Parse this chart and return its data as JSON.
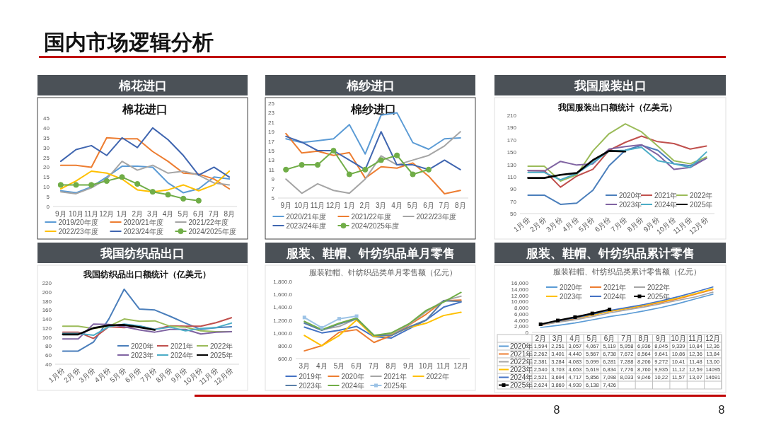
{
  "chart_data": [
    {
      "type": "other",
      "title": "国内市场逻辑分析",
      "annotations": [
        "8",
        "8"
      ]
    },
    {
      "type": "line",
      "title": "棉花进口",
      "subtitle": "棉花进口",
      "categories": [
        "9月",
        "10月",
        "11月",
        "12月",
        "1月",
        "2月",
        "3月",
        "4月",
        "5月",
        "6月",
        "7月",
        "8月"
      ],
      "ylim": [
        0,
        45
      ],
      "yticks": [
        0,
        5,
        10,
        15,
        20,
        25,
        30,
        35,
        40,
        45
      ],
      "legend": "bottom",
      "series": [
        {
          "name": "2019/20年度",
          "color": "#5b9bd5",
          "values": [
            8,
            7,
            10,
            15,
            20.5,
            20.5,
            20,
            12,
            7,
            9,
            15,
            14
          ]
        },
        {
          "name": "2020/21年度",
          "color": "#ed7d31",
          "values": [
            21,
            21,
            20,
            35,
            34.5,
            34.5,
            28,
            23,
            17,
            16.5,
            14,
            9
          ]
        },
        {
          "name": "2021/22年度",
          "color": "#a5a5a5",
          "values": [
            7.5,
            6.5,
            9.5,
            14,
            23,
            18.5,
            21,
            17,
            18,
            16,
            12,
            11
          ]
        },
        {
          "name": "2022/23年度",
          "color": "#ffc000",
          "values": [
            9,
            13,
            18,
            17,
            14,
            8.5,
            7.5,
            8.5,
            11,
            8,
            11,
            18
          ]
        },
        {
          "name": "2023/24年度",
          "color": "#4066b0",
          "values": [
            23,
            29,
            31,
            26,
            35,
            30,
            40,
            34,
            26,
            16,
            20,
            15
          ]
        },
        {
          "name": "2024/2025年度",
          "color": "#70ad47",
          "marker": "circle",
          "values": [
            11,
            11,
            11,
            13,
            15,
            11.5,
            7.5,
            6,
            4,
            3,
            null,
            null
          ]
        }
      ]
    },
    {
      "type": "line",
      "title": "棉纱进口",
      "subtitle": "棉纱进口",
      "categories": [
        "9月",
        "10月",
        "11月",
        "12月",
        "1月",
        "2月",
        "3月",
        "4月",
        "5月",
        "6月",
        "7月",
        "8月"
      ],
      "ylim": [
        5,
        25
      ],
      "yticks": [
        5,
        7,
        9,
        11,
        13,
        15,
        17,
        19,
        21,
        23,
        25
      ],
      "legend": "bottom",
      "series": [
        {
          "name": "2020/21年度",
          "color": "#5b9bd5",
          "values": [
            17.5,
            16.7,
            17.1,
            17.5,
            20.5,
            14.3,
            22.5,
            23,
            16.7,
            15.3,
            17.5,
            17.7
          ]
        },
        {
          "name": "2021/22年度",
          "color": "#ed7d31",
          "values": [
            18.6,
            14.5,
            14.9,
            14,
            14.6,
            9.2,
            11.6,
            11.3,
            12.4,
            9.6,
            5.9,
            6.6
          ]
        },
        {
          "name": "2022/23年度",
          "color": "#a5a5a5",
          "values": [
            9,
            6,
            8,
            6.6,
            6,
            9,
            13.9,
            12,
            13,
            14,
            16,
            19
          ]
        },
        {
          "name": "2023/24年度",
          "color": "#4066b0",
          "values": [
            18,
            16.8,
            15,
            15,
            13,
            11,
            19,
            12,
            12,
            11,
            13,
            11
          ]
        },
        {
          "name": "2024/2025年度",
          "color": "#70ad47",
          "marker": "circle",
          "values": [
            11,
            12,
            12,
            15,
            10,
            11,
            13,
            14,
            10,
            11,
            null,
            null
          ]
        }
      ]
    },
    {
      "type": "line",
      "title": "我国服装出口",
      "subtitle": "我国服装出口额统计（亿美元）",
      "categories": [
        "1月份",
        "2月份",
        "3月份",
        "4月份",
        "5月份",
        "6月份",
        "7月份",
        "8月份",
        "9月份",
        "10月份",
        "11月份",
        "12月份"
      ],
      "ylim": [
        50,
        210
      ],
      "yticks": [
        50,
        70,
        90,
        110,
        130,
        150,
        170,
        190,
        210
      ],
      "legend": "bottom right",
      "series": [
        {
          "name": "2020年",
          "color": "#4a7ebb",
          "values": [
            80,
            80,
            65,
            67,
            88,
            128,
            153,
            161,
            153,
            131,
            128,
            140
          ]
        },
        {
          "name": "2021年",
          "color": "#c0504d",
          "values": [
            120,
            120,
            93,
            111,
            122,
            153,
            166,
            176,
            167,
            164,
            155,
            160
          ]
        },
        {
          "name": "2022年",
          "color": "#9bbb59",
          "values": [
            127,
            127,
            103,
            113,
            152,
            180,
            196,
            183,
            160,
            136,
            131,
            142
          ]
        },
        {
          "name": "2023年",
          "color": "#8064a2",
          "values": [
            120,
            119,
            135,
            129,
            131,
            155,
            159,
            162,
            146,
            122,
            125,
            140
          ]
        },
        {
          "name": "2024年",
          "color": "#4bacc6",
          "values": [
            117,
            117,
            105,
            115,
            133,
            152,
            153,
            158,
            136,
            131,
            125,
            150
          ]
        },
        {
          "name": "2025年",
          "color": "#000000",
          "values": [
            108,
            108,
            113,
            116,
            137,
            152,
            151,
            null,
            null,
            null,
            null,
            null
          ]
        }
      ]
    },
    {
      "type": "line",
      "title": "我国纺织品出口",
      "subtitle": "我国纺织品出口额统计（亿美元）",
      "categories": [
        "1月份",
        "2月份",
        "3月份",
        "4月份",
        "5月份",
        "6月份",
        "7月份",
        "8月份",
        "9月份",
        "10月份",
        "11月份",
        "12月份"
      ],
      "ylim": [
        40,
        220
      ],
      "yticks": [
        40,
        60,
        80,
        100,
        120,
        140,
        160,
        180,
        200,
        220
      ],
      "legend": "bottom right",
      "series": [
        {
          "name": "2020年",
          "color": "#4a7ebb",
          "values": [
            69,
            69,
            89,
            140,
            206,
            162,
            160,
            146,
            131,
            117,
            121,
            123
          ]
        },
        {
          "name": "2021年",
          "color": "#c0504d",
          "values": [
            111,
            111,
            97,
            123,
            121,
            124,
            117,
            125,
            124,
            124,
            132,
            143
          ]
        },
        {
          "name": "2022年",
          "color": "#9bbb59",
          "values": [
            124,
            124,
            119,
            124,
            140,
            135,
            136,
            124,
            122,
            114,
            112,
            112
          ]
        },
        {
          "name": "2023年",
          "color": "#8064a2",
          "values": [
            96,
            96,
            129,
            128,
            123,
            116,
            111,
            117,
            117,
            107,
            111,
            112
          ]
        },
        {
          "name": "2024年",
          "color": "#4bacc6",
          "values": [
            108,
            108,
            104,
            123,
            129,
            125,
            117,
            122,
            114,
            119,
            121,
            131
          ]
        },
        {
          "name": "2025年",
          "color": "#000000",
          "values": [
            106,
            106,
            120,
            126,
            127,
            122,
            116,
            null,
            null,
            null,
            null,
            null
          ]
        }
      ]
    },
    {
      "type": "line",
      "title": "服装、鞋帽、针纺织品单月零售",
      "subtitle": "服装鞋帽、针纺织品类单月零售额（亿元）",
      "categories": [
        "3月",
        "4月",
        "5月",
        "6月",
        "7月",
        "8月",
        "9月",
        "10月",
        "11月",
        "12月"
      ],
      "ylim": [
        600,
        1800
      ],
      "yticks": [
        {
          "value": 600,
          "label": "600.0"
        },
        {
          "value": 800,
          "label": "800.0"
        },
        {
          "value": 1000,
          "label": "1,000.0"
        },
        {
          "value": 1200,
          "label": "1,200.0"
        },
        {
          "value": 1400,
          "label": "1,400.0"
        },
        {
          "value": 1600,
          "label": "1,600.0"
        },
        {
          "value": 1800,
          "label": "1,800.0"
        }
      ],
      "legend": "bottom",
      "series": [
        {
          "name": "2019年",
          "color": "#4472c4",
          "values": [
            1090,
            1000,
            1040,
            1100,
            940,
            920,
            1060,
            1200,
            1400,
            1480
          ]
        },
        {
          "name": "2020年",
          "color": "#ed7d31",
          "values": [
            720,
            800,
            1010,
            1050,
            850,
            960,
            1120,
            1290,
            1500,
            1510
          ]
        },
        {
          "name": "2021年",
          "color": "#a5a5a5",
          "values": [
            1170,
            1050,
            1100,
            1220,
            950,
            980,
            1130,
            1330,
            1500,
            1570
          ]
        },
        {
          "name": "2022年",
          "color": "#ffc000",
          "values": [
            960,
            800,
            960,
            1200,
            940,
            970,
            1080,
            1150,
            1270,
            1320
          ]
        },
        {
          "name": "2023年",
          "color": "#5a7fa8",
          "values": [
            1150,
            1040,
            1140,
            1220,
            960,
            960,
            1090,
            1200,
            1500,
            1490
          ]
        },
        {
          "name": "2024年",
          "color": "#70ad47",
          "values": [
            1180,
            1050,
            1150,
            1230,
            960,
            1000,
            1140,
            1350,
            1480,
            1630
          ]
        },
        {
          "name": "2025年",
          "color": "#9dc3e6",
          "marker": "square",
          "values": [
            1240,
            1080,
            1220,
            1260,
            null,
            null,
            null,
            null,
            null,
            null
          ]
        }
      ]
    },
    {
      "type": "line",
      "title": "服装、鞋帽、针纺织品累计零售",
      "subtitle": "服装鞋帽、针纺织品类累计零售额（亿元）",
      "categories": [
        "2月",
        "3月",
        "4月",
        "5月",
        "6月",
        "7月",
        "8月",
        "9月",
        "10月",
        "11月",
        "12月"
      ],
      "ylim": [
        0,
        16000
      ],
      "yticks": [
        0,
        {
          "value": 2000,
          "label": "2,000"
        },
        {
          "value": 4000,
          "label": "4,000"
        },
        {
          "value": 6000,
          "label": "6,000"
        },
        {
          "value": 8000,
          "label": "8,000"
        },
        {
          "value": 10000,
          "label": "10,000"
        },
        {
          "value": 12000,
          "label": "12,000"
        },
        {
          "value": 14000,
          "label": "14,000"
        },
        {
          "value": 16000,
          "label": "16,000"
        }
      ],
      "legend": "top left",
      "series": [
        {
          "name": "2020年",
          "color": "#5b9bd5",
          "values": [
            1594,
            2251,
            3057,
            4067,
            5119,
            5958,
            6936,
            8045,
            9339,
            10840,
            12360
          ],
          "value_labels": [
            "1,594",
            "2,251",
            "3,057",
            "4,067",
            "5,119",
            "5,958",
            "6,936",
            "8,045",
            "9,339",
            null,
            null
          ]
        },
        {
          "name": "2021年",
          "color": "#ed7d31",
          "values": [
            2262,
            3401,
            4440,
            5567,
            6738,
            7672,
            8564,
            9641,
            10860,
            12360,
            13840
          ],
          "value_labels": [
            "2,262",
            "3,401",
            "4,440",
            "5,567",
            "6,738",
            "7,672",
            "8,564",
            "9,641",
            null,
            null,
            null
          ]
        },
        {
          "name": "2022年",
          "color": "#a5a5a5",
          "values": [
            2381,
            3284,
            4083,
            5099,
            6281,
            7288,
            8206,
            9272,
            10410,
            11480,
            13000
          ],
          "value_labels": [
            "2,381",
            "3,284",
            "4,083",
            "5,099",
            "6,281",
            "7,288",
            "8,206",
            "9,272",
            null,
            null,
            null
          ]
        },
        {
          "name": "2023年",
          "color": "#ffc000",
          "values": [
            2540,
            3703,
            4653,
            5619,
            6834,
            7776,
            8760,
            9935,
            11120,
            12590,
            14095
          ],
          "value_labels": [
            "2,540",
            "3,703",
            "4,653",
            "5,619",
            "6,834",
            "7,776",
            "8,760",
            "9,935",
            null,
            null,
            "14095"
          ]
        },
        {
          "name": "2024年",
          "color": "#4472c4",
          "values": [
            2521,
            3694,
            4717,
            5856,
            7098,
            8033,
            9046,
            10220,
            11570,
            13070,
            14691
          ],
          "value_labels": [
            "2,521",
            "3,694",
            "4,717",
            "5,856",
            "7,098",
            "8,033",
            "9,046",
            null,
            null,
            null,
            "14691"
          ]
        },
        {
          "name": "2025年",
          "color": "#000000",
          "marker": "square",
          "values": [
            2624,
            3869,
            4939,
            6138,
            7426,
            null,
            null,
            null,
            null,
            null,
            null
          ],
          "value_labels": [
            "2,624",
            "3,869",
            "4,939",
            "6,138",
            "7,426",
            null,
            null,
            null,
            null,
            null,
            null
          ]
        }
      ],
      "annotations": [
        "10,84",
        "12,36",
        "10,86",
        "12,36",
        "13,84",
        "10,41",
        "11,48",
        "13,00",
        "11,12",
        "12,59",
        "10,22",
        "11,57",
        "13,07"
      ]
    }
  ]
}
